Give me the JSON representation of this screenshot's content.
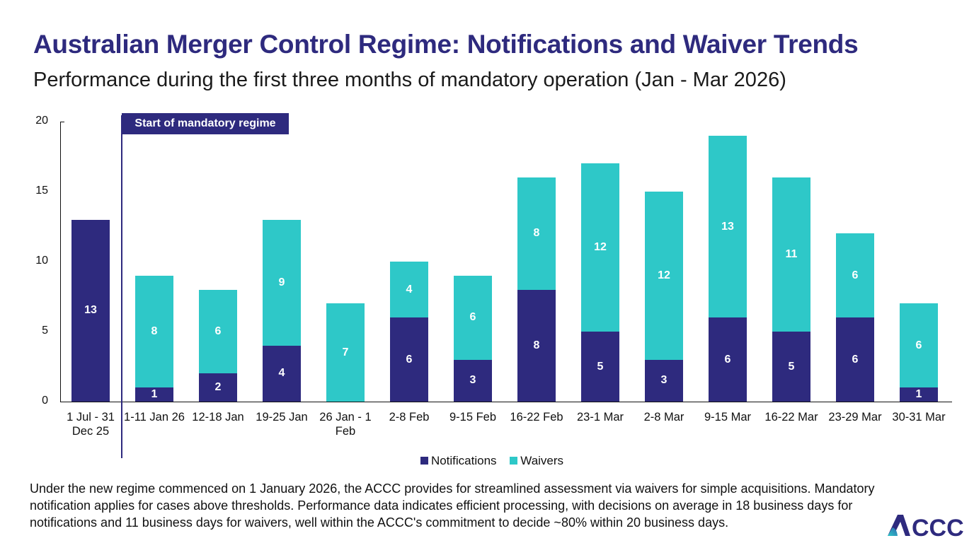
{
  "title": "Australian Merger Control Regime: Notifications and Waiver Trends",
  "subtitle": "Performance during the first three months of mandatory operation (Jan - Mar 2026)",
  "annotation": "Start of mandatory regime",
  "footnote": "Under the new regime commenced on 1 January 2026, the ACCC provides for streamlined assessment via waivers for simple acquisitions. Mandatory notification applies for cases above thresholds. Performance data indicates efficient processing, with decisions on average in 18 business days for notifications and 11 business days for waivers, well within the ACCC's commitment to decide ~80% within 20 business days.",
  "logo_text": "ACCC",
  "colors": {
    "notifications": "#2e2a7e",
    "waivers": "#2ec8c8"
  },
  "chart_data": {
    "type": "bar",
    "stacked": true,
    "title": "Australian Merger Control Regime: Notifications and Waiver Trends",
    "categories": [
      "1 Jul - 31 Dec 25",
      "1-11 Jan 26",
      "12-18 Jan",
      "19-25 Jan",
      "26 Jan - 1 Feb",
      "2-8 Feb",
      "9-15 Feb",
      "16-22 Feb",
      "23-1 Mar",
      "2-8 Mar",
      "9-15 Mar",
      "16-22 Mar",
      "23-29 Mar",
      "30-31 Mar"
    ],
    "series": [
      {
        "name": "Notifications",
        "values": [
          13,
          1,
          2,
          4,
          0,
          6,
          3,
          8,
          5,
          3,
          6,
          5,
          6,
          1
        ]
      },
      {
        "name": "Waivers",
        "values": [
          0,
          8,
          6,
          9,
          7,
          4,
          6,
          8,
          12,
          12,
          13,
          11,
          6,
          6
        ]
      }
    ],
    "yticks": [
      0,
      5,
      10,
      15,
      20
    ],
    "ylim": [
      0,
      20
    ],
    "xlabel": "",
    "ylabel": "",
    "legend": "bottom-center",
    "grid": false
  }
}
